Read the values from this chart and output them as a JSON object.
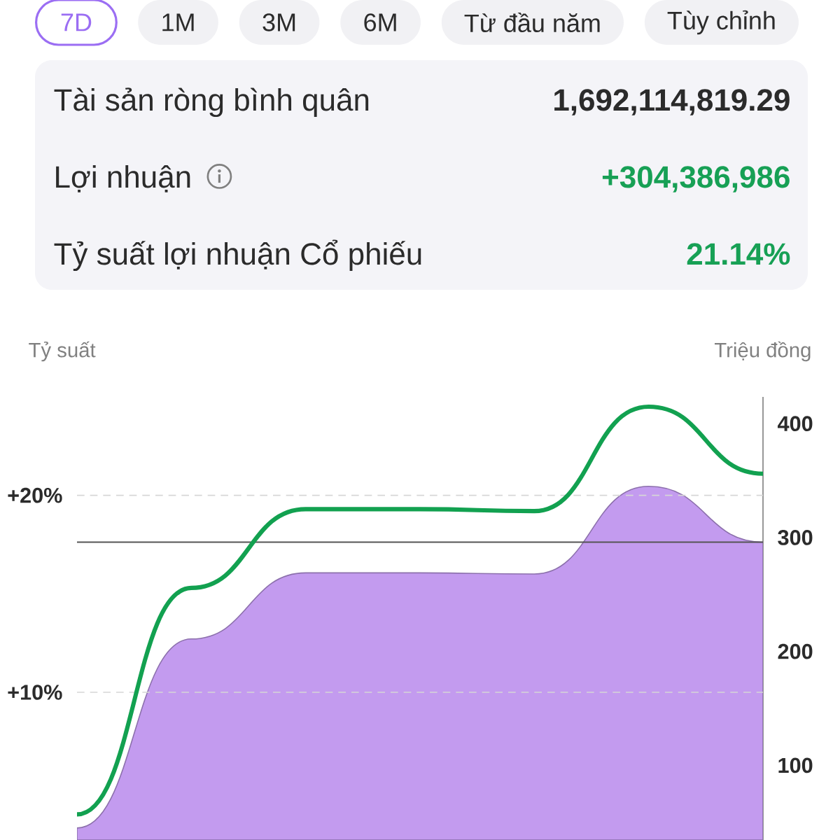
{
  "chart_data": [
    {
      "type": "other",
      "annotations": [
        "7D",
        "1M",
        "3M",
        "6M",
        "Từ đầu năm",
        "Tùy chỉnh"
      ]
    },
    {
      "type": "other",
      "annotations": [
        "Tài sản ròng bình quân",
        "1,692,114,819.29",
        "Lợi nhuận",
        "+304,386,986",
        "Tỷ suất lợi nhuận Cổ phiếu",
        "21.14%"
      ]
    },
    {
      "type": "line",
      "ylabel": "Tỷ suất",
      "y2label": "Triệu đồng",
      "categories": [
        null,
        null,
        null,
        null,
        null,
        null,
        null
      ],
      "series": [
        {
          "type": "area",
          "axis": "y2",
          "color": "#c39bef",
          "values": [
            45,
            211,
            269,
            269,
            268,
            345,
            296
          ]
        },
        {
          "color": "#12a150",
          "values": [
            3.8,
            15.3,
            19.3,
            19.3,
            19.2,
            24.5,
            21.1
          ]
        }
      ],
      "ylim": [
        2.5,
        25
      ],
      "yticks": [
        {
          "value": 10,
          "label": "+10%"
        },
        {
          "value": 20,
          "label": "+20%"
        }
      ],
      "y2lim": [
        34.5,
        423.5
      ],
      "y2ticks": [
        100,
        200,
        300,
        400
      ],
      "grid": "y",
      "ref_lines": [
        {
          "axis": "y2",
          "value": 296,
          "color": "#555555"
        }
      ],
      "marker": "none"
    }
  ]
}
